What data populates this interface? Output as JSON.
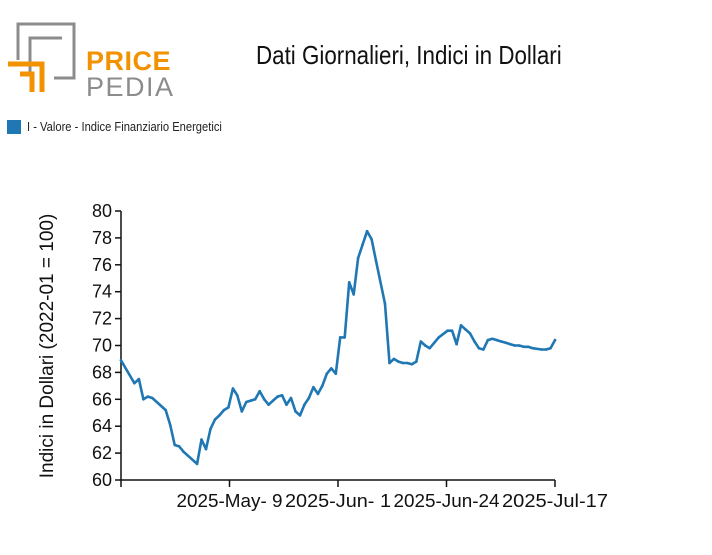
{
  "logo": {
    "word1": "PRICE",
    "word2": "PEDIA",
    "colors": {
      "accent": "#f39200",
      "gray": "#8c8c8c"
    }
  },
  "chart_data": {
    "type": "line",
    "title": "Dati Giornalieri, Indici in Dollari",
    "ylabel": "Indici in Dollari (2022-01 = 100)",
    "xlabel": "",
    "ylim": [
      60,
      80
    ],
    "y_ticks": [
      60,
      62,
      64,
      66,
      68,
      70,
      72,
      74,
      76,
      78,
      80
    ],
    "x_ticks": [
      "2025-May- 9",
      "2025-Jun- 1",
      "2025-Jun-24",
      "2025-Jul-17"
    ],
    "legend_position": "top-left",
    "grid": false,
    "series": [
      {
        "name": "I - Valore - Indice Finanziario Energetici",
        "color": "#1f77b4",
        "x": [
          "2025-04-11",
          "2025-04-14",
          "2025-04-15",
          "2025-04-16",
          "2025-04-17",
          "2025-04-18",
          "2025-04-21",
          "2025-04-22",
          "2025-04-23",
          "2025-04-24",
          "2025-04-25",
          "2025-04-28",
          "2025-04-29",
          "2025-04-30",
          "2025-05-01",
          "2025-05-02",
          "2025-05-03",
          "2025-05-04",
          "2025-05-05",
          "2025-05-06",
          "2025-05-07",
          "2025-05-08",
          "2025-05-09",
          "2025-05-10",
          "2025-05-11",
          "2025-05-12",
          "2025-05-13",
          "2025-05-14",
          "2025-05-15",
          "2025-05-16",
          "2025-05-17",
          "2025-05-18",
          "2025-05-19",
          "2025-05-20",
          "2025-05-21",
          "2025-05-22",
          "2025-05-23",
          "2025-05-24",
          "2025-05-25",
          "2025-05-26",
          "2025-05-27",
          "2025-05-28",
          "2025-05-29",
          "2025-05-30",
          "2025-05-31",
          "2025-06-01",
          "2025-06-02",
          "2025-06-03",
          "2025-06-04",
          "2025-06-05",
          "2025-06-06",
          "2025-06-07",
          "2025-06-09",
          "2025-06-10",
          "2025-06-11",
          "2025-06-12",
          "2025-06-13",
          "2025-06-14",
          "2025-06-15",
          "2025-06-16",
          "2025-06-17",
          "2025-06-18",
          "2025-06-19",
          "2025-06-20",
          "2025-06-21",
          "2025-06-23",
          "2025-06-24",
          "2025-06-25",
          "2025-06-26",
          "2025-06-27",
          "2025-06-28",
          "2025-06-29",
          "2025-06-30",
          "2025-07-01",
          "2025-07-02",
          "2025-07-03",
          "2025-07-04",
          "2025-07-05",
          "2025-07-06",
          "2025-07-07",
          "2025-07-08",
          "2025-07-09",
          "2025-07-10",
          "2025-07-11",
          "2025-07-12",
          "2025-07-14",
          "2025-07-15",
          "2025-07-16",
          "2025-07-17"
        ],
        "y": [
          68.9,
          67.2,
          67.5,
          66.0,
          66.2,
          66.1,
          65.2,
          64.1,
          62.6,
          62.5,
          62.1,
          61.2,
          63.0,
          62.3,
          63.8,
          64.5,
          64.8,
          65.2,
          65.4,
          66.8,
          66.3,
          65.1,
          65.8,
          65.9,
          66.0,
          66.6,
          66.0,
          65.6,
          65.9,
          66.2,
          66.3,
          65.6,
          66.1,
          65.1,
          64.8,
          65.6,
          66.1,
          66.9,
          66.4,
          67.0,
          67.9,
          68.3,
          67.9,
          70.6,
          70.6,
          74.7,
          73.8,
          76.5,
          77.5,
          78.5,
          77.9,
          76.3,
          73.1,
          68.7,
          69.0,
          68.8,
          68.7,
          68.7,
          68.6,
          68.8,
          70.3,
          70.0,
          69.8,
          70.2,
          70.6,
          71.1,
          71.1,
          70.1,
          71.5,
          71.2,
          70.9,
          70.3,
          69.8,
          69.7,
          70.4,
          70.5,
          70.4,
          70.3,
          70.2,
          70.1,
          70.0,
          70.0,
          69.9,
          69.9,
          69.8,
          69.7,
          69.7,
          69.8,
          70.4
        ]
      }
    ]
  }
}
